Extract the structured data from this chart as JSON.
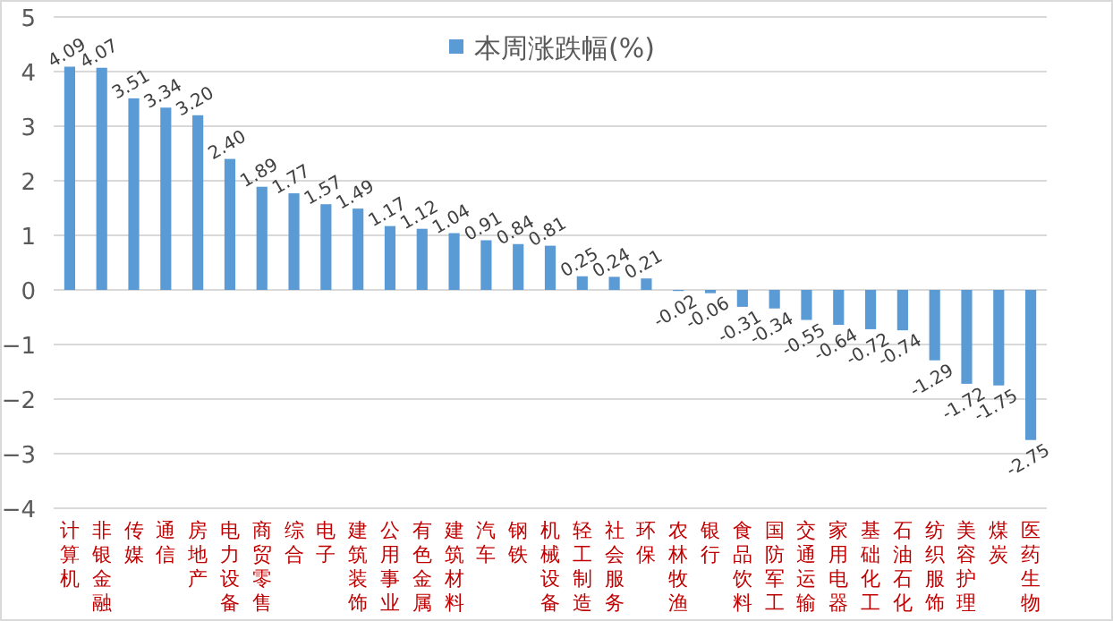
{
  "chart_data": {
    "type": "bar",
    "categories": [
      "计算机",
      "非银金融",
      "传媒",
      "通信",
      "房地产",
      "电力设备",
      "商贸零售",
      "综合",
      "电子",
      "建筑装饰",
      "公用事业",
      "有色金属",
      "建筑材料",
      "汽车",
      "钢铁",
      "机械设备",
      "轻工制造",
      "社会服务",
      "环保",
      "农林牧渔",
      "银行",
      "食品饮料",
      "国防军工",
      "交通运输",
      "家用电器",
      "基础化工",
      "石油石化",
      "纺织服饰",
      "美容护理",
      "煤炭",
      "医药生物"
    ],
    "series": [
      {
        "name": "本周涨跌幅(%)",
        "color": "#5b9bd5",
        "values": [
          4.09,
          4.07,
          3.51,
          3.34,
          3.2,
          2.4,
          1.89,
          1.77,
          1.57,
          1.49,
          1.17,
          1.12,
          1.04,
          0.91,
          0.84,
          0.81,
          0.25,
          0.24,
          0.21,
          -0.02,
          -0.06,
          -0.31,
          -0.34,
          -0.55,
          -0.64,
          -0.72,
          -0.74,
          -1.29,
          -1.72,
          -1.75,
          -2.75
        ],
        "value_labels": [
          "4.09",
          "4.07",
          "3.51",
          "3.34",
          "3.20",
          "2.40",
          "1.89",
          "1.77",
          "1.57",
          "1.49",
          "1.17",
          "1.12",
          "1.04",
          "0.91",
          "0.84",
          "0.81",
          "0.25",
          "0.24",
          "0.21",
          "-0.02",
          "-0.06",
          "-0.31",
          "-0.34",
          "-0.55",
          "-0.64",
          "-0.72",
          "-0.74",
          "-1.29",
          "-1.72",
          "-1.75",
          "-2.75"
        ]
      }
    ],
    "ylim": [
      -4,
      5
    ],
    "yticks": [
      -4,
      -3,
      -2,
      -1,
      0,
      1,
      2,
      3,
      4,
      5
    ],
    "grid": "y",
    "legend": "top"
  }
}
